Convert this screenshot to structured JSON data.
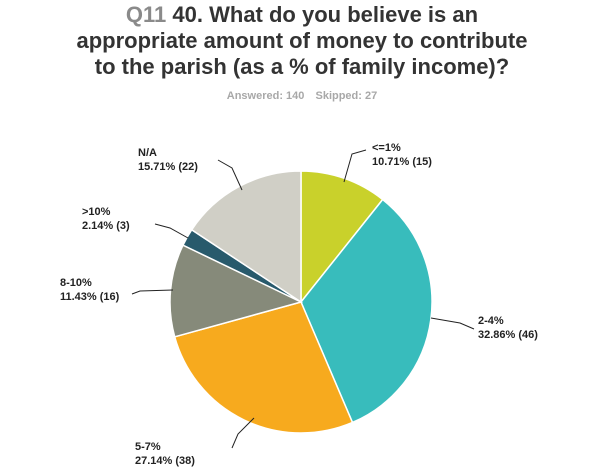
{
  "header": {
    "question_number": "Q11",
    "title_line1": "40. What do you believe is an",
    "title_line2": "appropriate amount of money to contribute",
    "title_line3": "to the parish (as a % of family income)?",
    "answered": "Answered: 140",
    "skipped": "Skipped: 27"
  },
  "chart_data": {
    "type": "pie",
    "slices": [
      {
        "name": "<=1%",
        "pct_label": "10.71% (15)",
        "value": 10.71,
        "count": 15,
        "color": "#c9d12b"
      },
      {
        "name": "2-4%",
        "pct_label": "32.86% (46)",
        "value": 32.86,
        "count": 46,
        "color": "#38bcbc"
      },
      {
        "name": "5-7%",
        "pct_label": "27.14% (38)",
        "value": 27.14,
        "count": 38,
        "color": "#f7aa1e"
      },
      {
        "name": "8-10%",
        "pct_label": "11.43% (16)",
        "value": 11.43,
        "count": 16,
        "color": "#868a7a"
      },
      {
        "name": ">10%",
        "pct_label": "2.14% (3)",
        "value": 2.14,
        "count": 3,
        "color": "#285a6c"
      },
      {
        "name": "N/A",
        "pct_label": "15.71% (22)",
        "value": 15.71,
        "count": 22,
        "color": "#d0cfc6"
      }
    ]
  }
}
